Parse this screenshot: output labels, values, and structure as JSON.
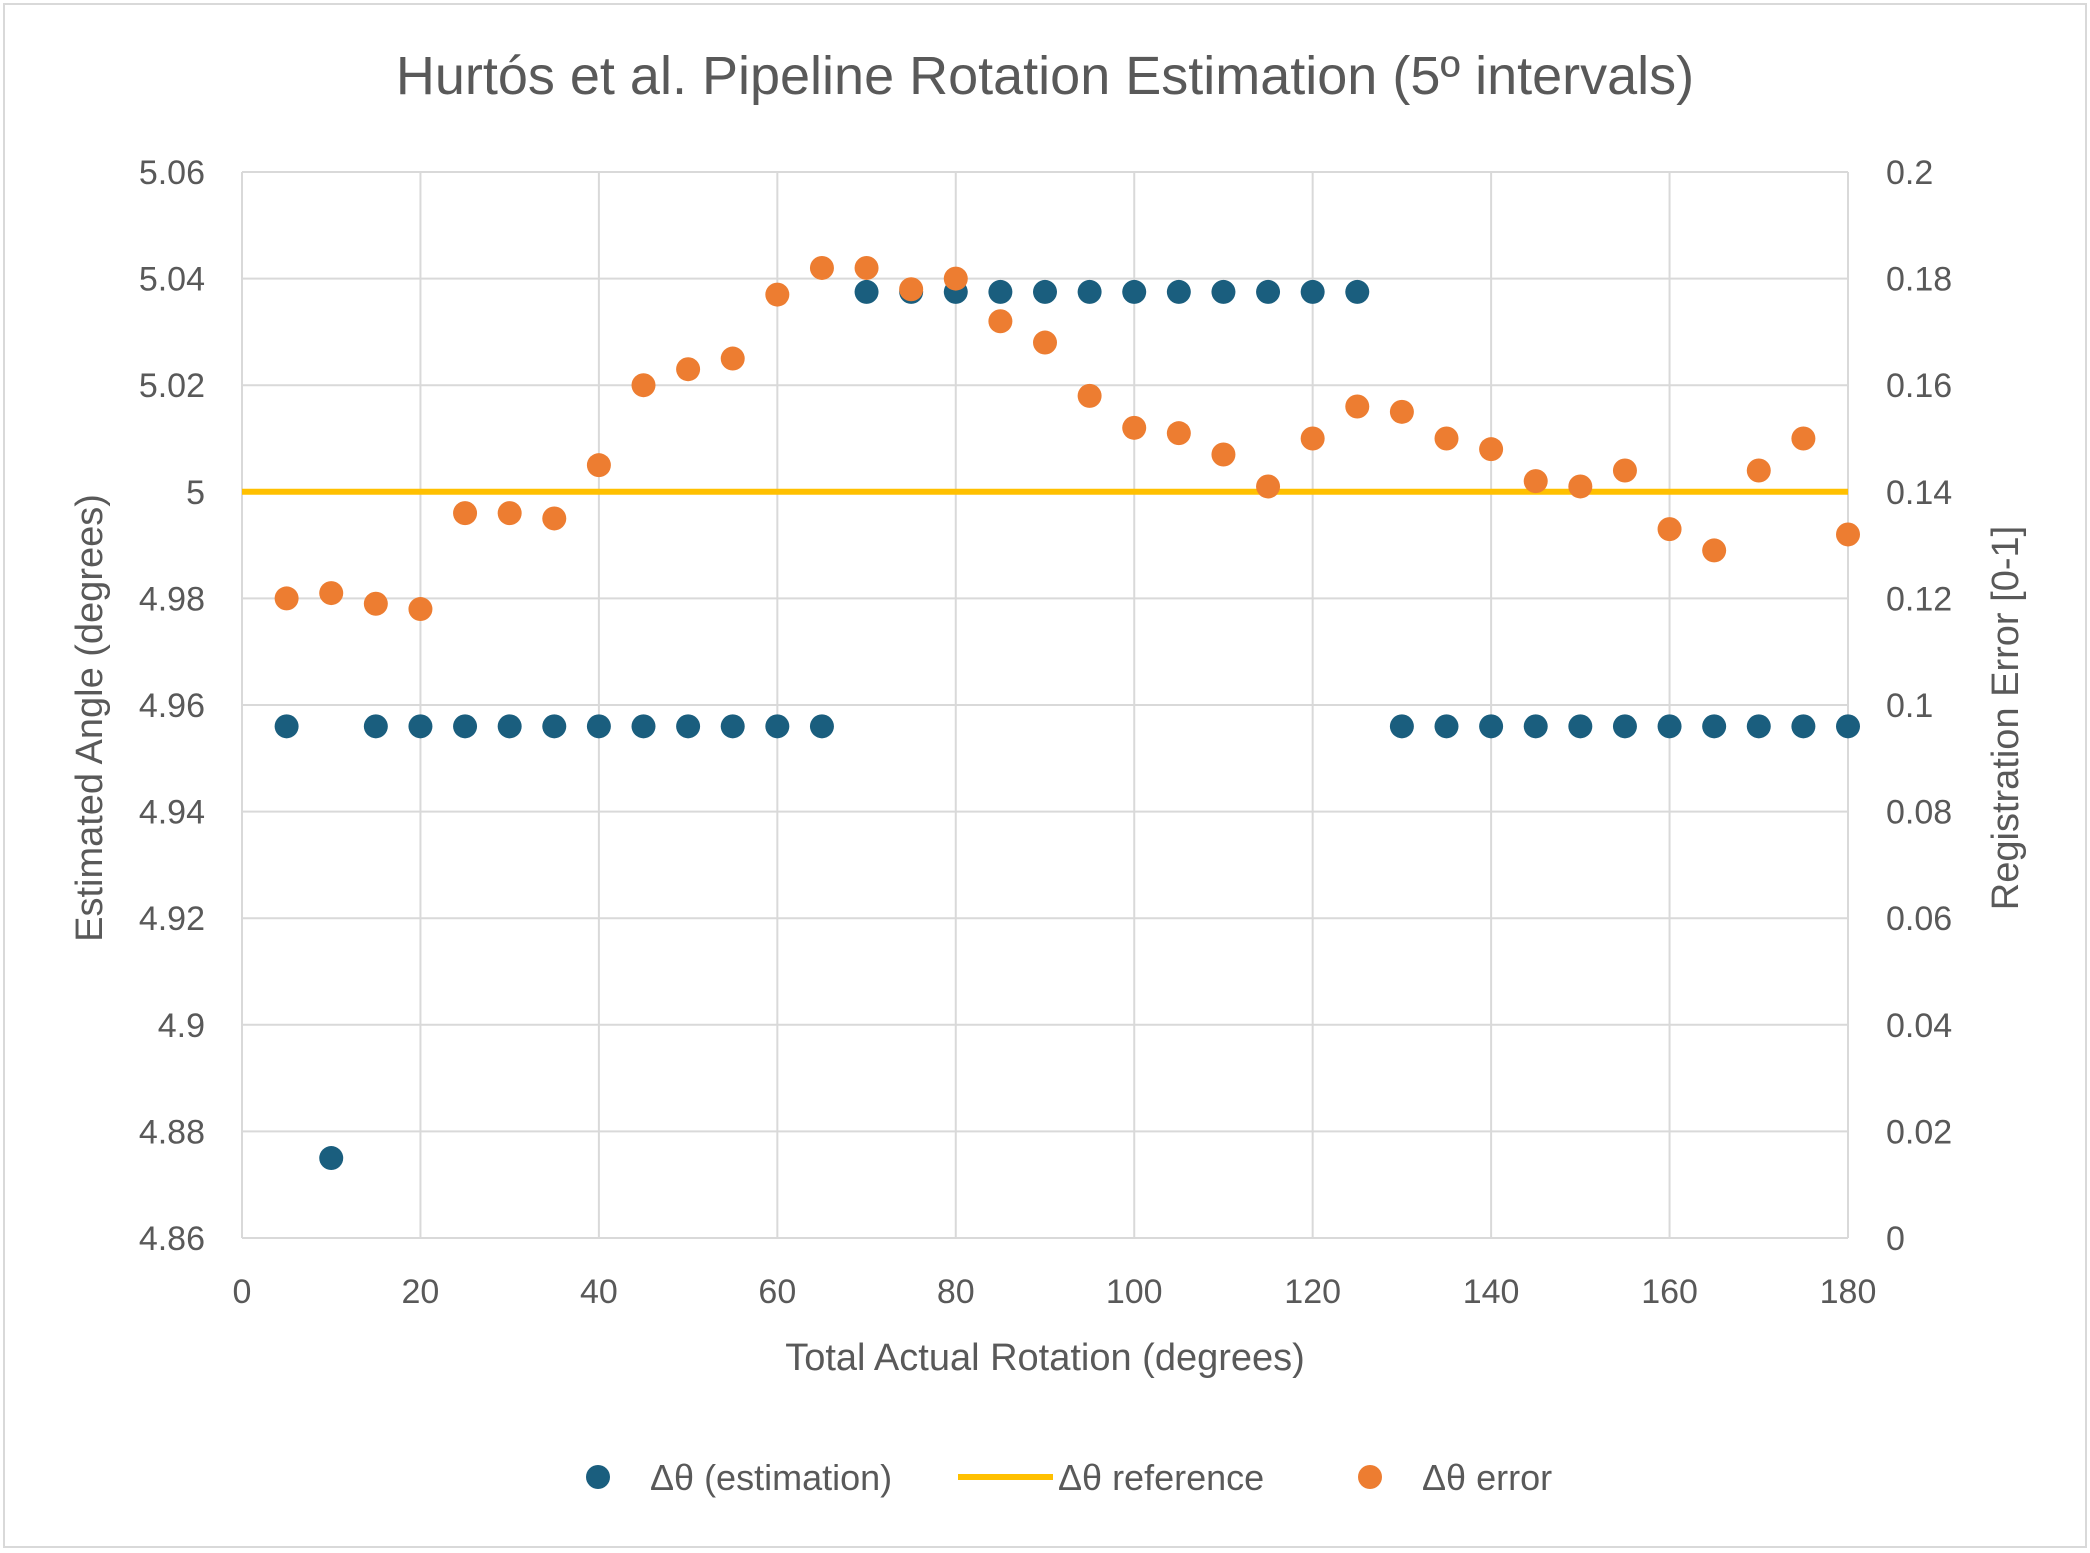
{
  "chart_data": {
    "type": "scatter",
    "title": "Hurtós et al. Pipeline Rotation Estimation (5º intervals)",
    "xlabel": "Total Actual Rotation (degrees)",
    "ylabel": "Estimated Angle (degrees)",
    "y2label": "Registration Error [0-1]",
    "xlim": [
      0,
      180
    ],
    "ylim": [
      4.86,
      5.06
    ],
    "y2lim": [
      0,
      0.2
    ],
    "x_ticks": [
      "0",
      "20",
      "40",
      "60",
      "80",
      "100",
      "120",
      "140",
      "160",
      "180"
    ],
    "y_ticks": [
      "4.86",
      "4.88",
      "4.9",
      "4.92",
      "4.94",
      "4.96",
      "4.98",
      "5",
      "5.02",
      "5.04",
      "5.06"
    ],
    "y2_ticks": [
      "0",
      "0.02",
      "0.04",
      "0.06",
      "0.08",
      "0.1",
      "0.12",
      "0.14",
      "0.16",
      "0.18",
      "0.2"
    ],
    "grid": true,
    "legend_position": "bottom",
    "series": [
      {
        "name": "Δθ (estimation)",
        "kind": "scatter",
        "axis": "left",
        "color": "#1a5e7e",
        "x": [
          5,
          10,
          15,
          20,
          25,
          30,
          35,
          40,
          45,
          50,
          55,
          60,
          65,
          70,
          75,
          80,
          85,
          90,
          95,
          100,
          105,
          110,
          115,
          120,
          125,
          130,
          135,
          140,
          145,
          150,
          155,
          160,
          165,
          170,
          175,
          180
        ],
        "y": [
          4.956,
          4.875,
          4.956,
          4.956,
          4.956,
          4.956,
          4.956,
          4.956,
          4.956,
          4.956,
          4.956,
          4.956,
          4.956,
          5.0375,
          5.0375,
          5.0375,
          5.0375,
          5.0375,
          5.0375,
          5.0375,
          5.0375,
          5.0375,
          5.0375,
          5.0375,
          5.0375,
          4.956,
          4.956,
          4.956,
          4.956,
          4.956,
          4.956,
          4.956,
          4.956,
          4.956,
          4.956,
          4.956
        ]
      },
      {
        "name": "Δθ reference",
        "kind": "line",
        "axis": "left",
        "color": "#ffc000",
        "x": [
          0,
          180
        ],
        "y": [
          5,
          5
        ]
      },
      {
        "name": "Δθ error",
        "kind": "scatter",
        "axis": "right",
        "color": "#ed7d31",
        "x": [
          5,
          10,
          15,
          20,
          25,
          30,
          35,
          40,
          45,
          50,
          55,
          60,
          65,
          70,
          75,
          80,
          85,
          90,
          95,
          100,
          105,
          110,
          115,
          120,
          125,
          130,
          135,
          140,
          145,
          150,
          155,
          160,
          165,
          170,
          175,
          180
        ],
        "y": [
          0.12,
          0.121,
          0.119,
          0.118,
          0.136,
          0.136,
          0.135,
          0.145,
          0.16,
          0.163,
          0.165,
          0.177,
          0.182,
          0.182,
          0.178,
          0.18,
          0.172,
          0.168,
          0.158,
          0.152,
          0.151,
          0.147,
          0.141,
          0.15,
          0.156,
          0.155,
          0.15,
          0.148,
          0.142,
          0.141,
          0.144,
          0.133,
          0.129,
          0.144,
          0.15,
          0.132
        ]
      }
    ]
  }
}
